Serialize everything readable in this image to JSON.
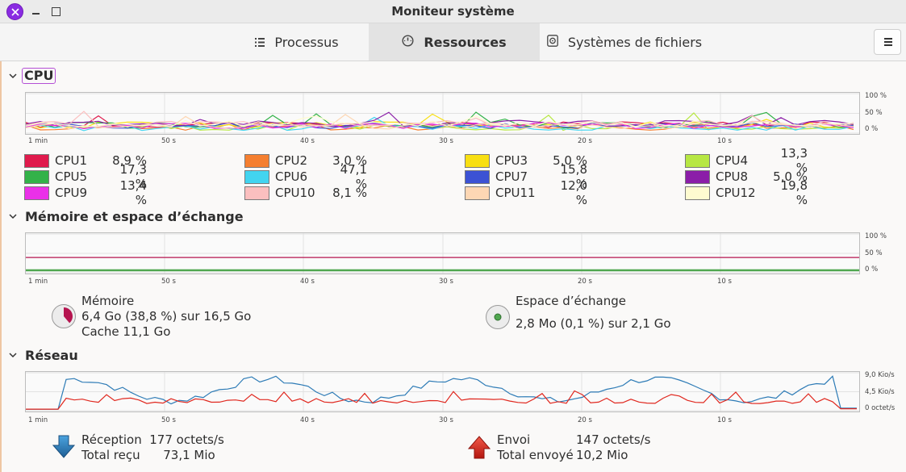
{
  "window": {
    "title": "Moniteur système"
  },
  "tabs": [
    {
      "label": "Processus",
      "active": false,
      "icon": "list-icon"
    },
    {
      "label": "Ressources",
      "active": true,
      "icon": "gauge-icon"
    },
    {
      "label": "Systèmes de fichiers",
      "active": false,
      "icon": "disk-icon"
    }
  ],
  "menu": {
    "icon": "hamburger-menu-icon"
  },
  "time_axis": [
    "1 min",
    "50 s",
    "40 s",
    "30 s",
    "20 s",
    "10 s"
  ],
  "cpu": {
    "title": "CPU",
    "y_axis": [
      "100 %",
      "50 %",
      "0 %"
    ],
    "cores": [
      {
        "name": "CPU1",
        "value": "8,9 %",
        "color": "#e01b4d"
      },
      {
        "name": "CPU2",
        "value": "3,0 %",
        "color": "#f57f30"
      },
      {
        "name": "CPU3",
        "value": "5,0 %",
        "color": "#f8df12"
      },
      {
        "name": "CPU4",
        "value": "13,3 %",
        "color": "#b7e743"
      },
      {
        "name": "CPU5",
        "value": "17,3 %",
        "color": "#33b249"
      },
      {
        "name": "CPU6",
        "value": "47,1 %",
        "color": "#42d4f0"
      },
      {
        "name": "CPU7",
        "value": "15,8 %",
        "color": "#3c52d4"
      },
      {
        "name": "CPU8",
        "value": "5,0 %",
        "color": "#8b1ea8"
      },
      {
        "name": "CPU9",
        "value": "13,4 %",
        "color": "#ea30e8"
      },
      {
        "name": "CPU10",
        "value": "8,1 %",
        "color": "#fbbfbf"
      },
      {
        "name": "CPU11",
        "value": "12,0 %",
        "color": "#fdd7b4"
      },
      {
        "name": "CPU12",
        "value": "19,8 %",
        "color": "#fefbd0"
      }
    ]
  },
  "memory": {
    "title": "Mémoire et espace d’échange",
    "y_axis": [
      "100 %",
      "50 %",
      "0 %"
    ],
    "mem_label": "Mémoire",
    "mem_usage": "6,4 Go (38,8 %) sur 16,5 Go",
    "mem_cache": "Cache 11,1 Go",
    "mem_percent": 38.8,
    "mem_color": "#b5144f",
    "swap_label": "Espace d’échange",
    "swap_usage": "2,8 Mo (0,1 %) sur 2,1 Go",
    "swap_percent": 0.1,
    "swap_color": "#4fa64f"
  },
  "network": {
    "title": "Réseau",
    "y_axis": [
      "9,0 Kio/s",
      "4,5 Kio/s",
      "0 octet/s"
    ],
    "rx_label": "Réception",
    "rx_rate": "177 octets/s",
    "rx_total_label": "Total reçu",
    "rx_total": "73,1 Mio",
    "rx_color": "#2d7bb6",
    "tx_label": "Envoi",
    "tx_rate": "147 octets/s",
    "tx_total_label": "Total envoyé",
    "tx_total": "10,2 Mio",
    "tx_color": "#e0281f"
  }
}
